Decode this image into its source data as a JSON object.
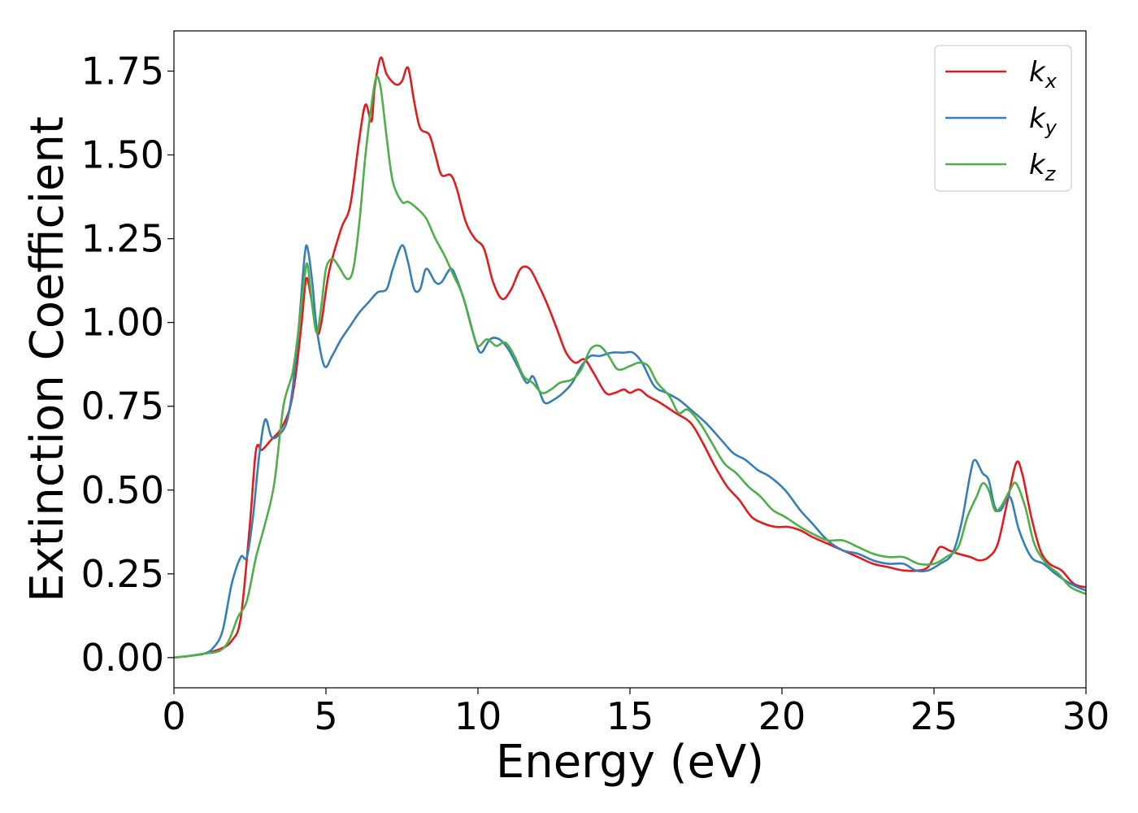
{
  "chart_data": {
    "type": "line",
    "xlabel": "Energy (eV)",
    "ylabel": "Extinction Coefficient",
    "xlim": [
      0,
      30
    ],
    "ylim": [
      -0.09,
      1.87
    ],
    "xticks": [
      0,
      5,
      10,
      15,
      20,
      25,
      30
    ],
    "xtick_labels": [
      "0",
      "5",
      "10",
      "15",
      "20",
      "25",
      "30"
    ],
    "yticks": [
      0.0,
      0.25,
      0.5,
      0.75,
      1.0,
      1.25,
      1.5,
      1.75
    ],
    "ytick_labels": [
      "0.00",
      "0.25",
      "0.50",
      "0.75",
      "1.00",
      "1.25",
      "1.50",
      "1.75"
    ],
    "grid": false,
    "legend_position": "top-right",
    "series": [
      {
        "name": "k_x",
        "label_base": "k",
        "label_sub": "x",
        "color": "#e41a1c",
        "points": [
          [
            0,
            0
          ],
          [
            0.5,
            0.005
          ],
          [
            1.0,
            0.012
          ],
          [
            1.5,
            0.025
          ],
          [
            1.9,
            0.05
          ],
          [
            2.2,
            0.12
          ],
          [
            2.5,
            0.4
          ],
          [
            2.7,
            0.62
          ],
          [
            2.9,
            0.62
          ],
          [
            3.2,
            0.65
          ],
          [
            3.5,
            0.68
          ],
          [
            3.8,
            0.74
          ],
          [
            4.0,
            0.84
          ],
          [
            4.2,
            1.0
          ],
          [
            4.35,
            1.13
          ],
          [
            4.5,
            1.08
          ],
          [
            4.7,
            0.97
          ],
          [
            4.85,
            1.0
          ],
          [
            5.1,
            1.15
          ],
          [
            5.5,
            1.28
          ],
          [
            5.8,
            1.35
          ],
          [
            6.1,
            1.55
          ],
          [
            6.3,
            1.65
          ],
          [
            6.5,
            1.6
          ],
          [
            6.6,
            1.7
          ],
          [
            6.8,
            1.79
          ],
          [
            7.0,
            1.74
          ],
          [
            7.3,
            1.71
          ],
          [
            7.5,
            1.72
          ],
          [
            7.7,
            1.76
          ],
          [
            7.9,
            1.66
          ],
          [
            8.1,
            1.58
          ],
          [
            8.4,
            1.56
          ],
          [
            8.6,
            1.5
          ],
          [
            8.8,
            1.44
          ],
          [
            9.1,
            1.44
          ],
          [
            9.3,
            1.4
          ],
          [
            9.6,
            1.3
          ],
          [
            9.9,
            1.25
          ],
          [
            10.2,
            1.22
          ],
          [
            10.5,
            1.12
          ],
          [
            10.8,
            1.07
          ],
          [
            11.1,
            1.1
          ],
          [
            11.4,
            1.16
          ],
          [
            11.7,
            1.16
          ],
          [
            12.0,
            1.11
          ],
          [
            12.3,
            1.05
          ],
          [
            12.6,
            0.98
          ],
          [
            12.9,
            0.91
          ],
          [
            13.2,
            0.88
          ],
          [
            13.5,
            0.89
          ],
          [
            13.8,
            0.85
          ],
          [
            14.2,
            0.79
          ],
          [
            14.5,
            0.79
          ],
          [
            14.8,
            0.8
          ],
          [
            15.0,
            0.79
          ],
          [
            15.3,
            0.8
          ],
          [
            15.6,
            0.78
          ],
          [
            16.0,
            0.76
          ],
          [
            16.5,
            0.73
          ],
          [
            17.0,
            0.7
          ],
          [
            17.4,
            0.64
          ],
          [
            17.8,
            0.57
          ],
          [
            18.2,
            0.51
          ],
          [
            18.6,
            0.47
          ],
          [
            19.0,
            0.42
          ],
          [
            19.4,
            0.4
          ],
          [
            19.8,
            0.39
          ],
          [
            20.2,
            0.39
          ],
          [
            20.6,
            0.38
          ],
          [
            21.0,
            0.36
          ],
          [
            21.5,
            0.34
          ],
          [
            22.0,
            0.32
          ],
          [
            22.5,
            0.3
          ],
          [
            23.0,
            0.28
          ],
          [
            23.5,
            0.27
          ],
          [
            24.0,
            0.26
          ],
          [
            24.5,
            0.26
          ],
          [
            24.8,
            0.27
          ],
          [
            25.0,
            0.3
          ],
          [
            25.2,
            0.33
          ],
          [
            25.5,
            0.32
          ],
          [
            25.8,
            0.31
          ],
          [
            26.2,
            0.3
          ],
          [
            26.5,
            0.29
          ],
          [
            26.8,
            0.3
          ],
          [
            27.1,
            0.34
          ],
          [
            27.4,
            0.46
          ],
          [
            27.7,
            0.58
          ],
          [
            27.9,
            0.55
          ],
          [
            28.2,
            0.42
          ],
          [
            28.5,
            0.32
          ],
          [
            28.8,
            0.28
          ],
          [
            29.2,
            0.26
          ],
          [
            29.6,
            0.22
          ],
          [
            30.0,
            0.21
          ]
        ]
      },
      {
        "name": "k_y",
        "label_base": "k",
        "label_sub": "y",
        "color": "#377eb8",
        "points": [
          [
            0,
            0
          ],
          [
            0.5,
            0.005
          ],
          [
            1.0,
            0.012
          ],
          [
            1.3,
            0.03
          ],
          [
            1.6,
            0.08
          ],
          [
            1.9,
            0.22
          ],
          [
            2.2,
            0.3
          ],
          [
            2.4,
            0.3
          ],
          [
            2.6,
            0.42
          ],
          [
            2.8,
            0.6
          ],
          [
            3.0,
            0.71
          ],
          [
            3.2,
            0.66
          ],
          [
            3.4,
            0.66
          ],
          [
            3.7,
            0.7
          ],
          [
            3.9,
            0.8
          ],
          [
            4.1,
            0.98
          ],
          [
            4.3,
            1.2
          ],
          [
            4.4,
            1.22
          ],
          [
            4.55,
            1.12
          ],
          [
            4.7,
            0.98
          ],
          [
            4.95,
            0.87
          ],
          [
            5.2,
            0.9
          ],
          [
            5.5,
            0.95
          ],
          [
            5.8,
            0.99
          ],
          [
            6.1,
            1.03
          ],
          [
            6.4,
            1.06
          ],
          [
            6.7,
            1.09
          ],
          [
            7.0,
            1.1
          ],
          [
            7.2,
            1.16
          ],
          [
            7.5,
            1.23
          ],
          [
            7.7,
            1.18
          ],
          [
            7.9,
            1.1
          ],
          [
            8.1,
            1.1
          ],
          [
            8.3,
            1.16
          ],
          [
            8.6,
            1.12
          ],
          [
            8.8,
            1.12
          ],
          [
            9.1,
            1.16
          ],
          [
            9.3,
            1.13
          ],
          [
            9.6,
            1.05
          ],
          [
            9.9,
            0.95
          ],
          [
            10.1,
            0.91
          ],
          [
            10.4,
            0.95
          ],
          [
            10.7,
            0.95
          ],
          [
            11.0,
            0.92
          ],
          [
            11.3,
            0.87
          ],
          [
            11.6,
            0.82
          ],
          [
            11.8,
            0.84
          ],
          [
            12.0,
            0.8
          ],
          [
            12.2,
            0.76
          ],
          [
            12.5,
            0.77
          ],
          [
            12.8,
            0.79
          ],
          [
            13.1,
            0.82
          ],
          [
            13.4,
            0.87
          ],
          [
            13.7,
            0.9
          ],
          [
            14.0,
            0.9
          ],
          [
            14.4,
            0.91
          ],
          [
            14.8,
            0.91
          ],
          [
            15.1,
            0.91
          ],
          [
            15.4,
            0.88
          ],
          [
            15.8,
            0.81
          ],
          [
            16.2,
            0.79
          ],
          [
            16.6,
            0.77
          ],
          [
            17.0,
            0.74
          ],
          [
            17.5,
            0.7
          ],
          [
            18.0,
            0.65
          ],
          [
            18.4,
            0.61
          ],
          [
            18.8,
            0.59
          ],
          [
            19.2,
            0.56
          ],
          [
            19.6,
            0.54
          ],
          [
            20.1,
            0.5
          ],
          [
            20.6,
            0.44
          ],
          [
            21.0,
            0.4
          ],
          [
            21.5,
            0.35
          ],
          [
            22.0,
            0.32
          ],
          [
            22.5,
            0.31
          ],
          [
            23.0,
            0.29
          ],
          [
            23.5,
            0.28
          ],
          [
            24.0,
            0.28
          ],
          [
            24.4,
            0.26
          ],
          [
            24.8,
            0.26
          ],
          [
            25.2,
            0.28
          ],
          [
            25.6,
            0.31
          ],
          [
            25.9,
            0.4
          ],
          [
            26.2,
            0.55
          ],
          [
            26.35,
            0.59
          ],
          [
            26.6,
            0.55
          ],
          [
            26.8,
            0.53
          ],
          [
            27.0,
            0.45
          ],
          [
            27.2,
            0.44
          ],
          [
            27.5,
            0.48
          ],
          [
            27.8,
            0.38
          ],
          [
            28.2,
            0.3
          ],
          [
            28.6,
            0.28
          ],
          [
            29.0,
            0.25
          ],
          [
            29.5,
            0.22
          ],
          [
            30.0,
            0.2
          ]
        ]
      },
      {
        "name": "k_z",
        "label_base": "k",
        "label_sub": "z",
        "color": "#4daf4a",
        "points": [
          [
            0,
            0
          ],
          [
            0.5,
            0.005
          ],
          [
            1.0,
            0.012
          ],
          [
            1.5,
            0.02
          ],
          [
            1.8,
            0.05
          ],
          [
            2.1,
            0.12
          ],
          [
            2.4,
            0.17
          ],
          [
            2.7,
            0.3
          ],
          [
            3.0,
            0.4
          ],
          [
            3.3,
            0.52
          ],
          [
            3.6,
            0.75
          ],
          [
            3.9,
            0.85
          ],
          [
            4.1,
            0.98
          ],
          [
            4.3,
            1.14
          ],
          [
            4.4,
            1.17
          ],
          [
            4.55,
            1.05
          ],
          [
            4.7,
            0.97
          ],
          [
            4.85,
            1.05
          ],
          [
            5.0,
            1.16
          ],
          [
            5.2,
            1.19
          ],
          [
            5.4,
            1.17
          ],
          [
            5.7,
            1.13
          ],
          [
            5.9,
            1.16
          ],
          [
            6.1,
            1.3
          ],
          [
            6.3,
            1.5
          ],
          [
            6.5,
            1.65
          ],
          [
            6.65,
            1.73
          ],
          [
            6.8,
            1.7
          ],
          [
            7.0,
            1.55
          ],
          [
            7.2,
            1.42
          ],
          [
            7.5,
            1.36
          ],
          [
            7.7,
            1.36
          ],
          [
            8.0,
            1.34
          ],
          [
            8.3,
            1.31
          ],
          [
            8.6,
            1.25
          ],
          [
            8.9,
            1.2
          ],
          [
            9.2,
            1.14
          ],
          [
            9.5,
            1.08
          ],
          [
            9.8,
            0.98
          ],
          [
            10.0,
            0.93
          ],
          [
            10.3,
            0.95
          ],
          [
            10.6,
            0.93
          ],
          [
            10.9,
            0.94
          ],
          [
            11.2,
            0.9
          ],
          [
            11.5,
            0.84
          ],
          [
            11.8,
            0.82
          ],
          [
            12.1,
            0.79
          ],
          [
            12.4,
            0.8
          ],
          [
            12.7,
            0.82
          ],
          [
            13.1,
            0.83
          ],
          [
            13.4,
            0.86
          ],
          [
            13.7,
            0.92
          ],
          [
            14.0,
            0.93
          ],
          [
            14.3,
            0.9
          ],
          [
            14.6,
            0.86
          ],
          [
            15.0,
            0.87
          ],
          [
            15.3,
            0.88
          ],
          [
            15.6,
            0.87
          ],
          [
            15.9,
            0.82
          ],
          [
            16.3,
            0.78
          ],
          [
            16.6,
            0.73
          ],
          [
            16.9,
            0.74
          ],
          [
            17.3,
            0.7
          ],
          [
            17.7,
            0.64
          ],
          [
            18.1,
            0.58
          ],
          [
            18.5,
            0.55
          ],
          [
            18.9,
            0.51
          ],
          [
            19.3,
            0.48
          ],
          [
            19.7,
            0.44
          ],
          [
            20.1,
            0.42
          ],
          [
            20.6,
            0.39
          ],
          [
            21.0,
            0.37
          ],
          [
            21.5,
            0.35
          ],
          [
            22.0,
            0.35
          ],
          [
            22.5,
            0.33
          ],
          [
            23.0,
            0.31
          ],
          [
            23.5,
            0.3
          ],
          [
            24.0,
            0.3
          ],
          [
            24.5,
            0.28
          ],
          [
            25.0,
            0.28
          ],
          [
            25.4,
            0.3
          ],
          [
            25.8,
            0.33
          ],
          [
            26.1,
            0.42
          ],
          [
            26.4,
            0.48
          ],
          [
            26.6,
            0.52
          ],
          [
            26.8,
            0.5
          ],
          [
            27.0,
            0.44
          ],
          [
            27.2,
            0.45
          ],
          [
            27.5,
            0.5
          ],
          [
            27.7,
            0.52
          ],
          [
            28.0,
            0.45
          ],
          [
            28.3,
            0.34
          ],
          [
            28.7,
            0.28
          ],
          [
            29.1,
            0.25
          ],
          [
            29.5,
            0.21
          ],
          [
            30.0,
            0.19
          ]
        ]
      }
    ]
  }
}
